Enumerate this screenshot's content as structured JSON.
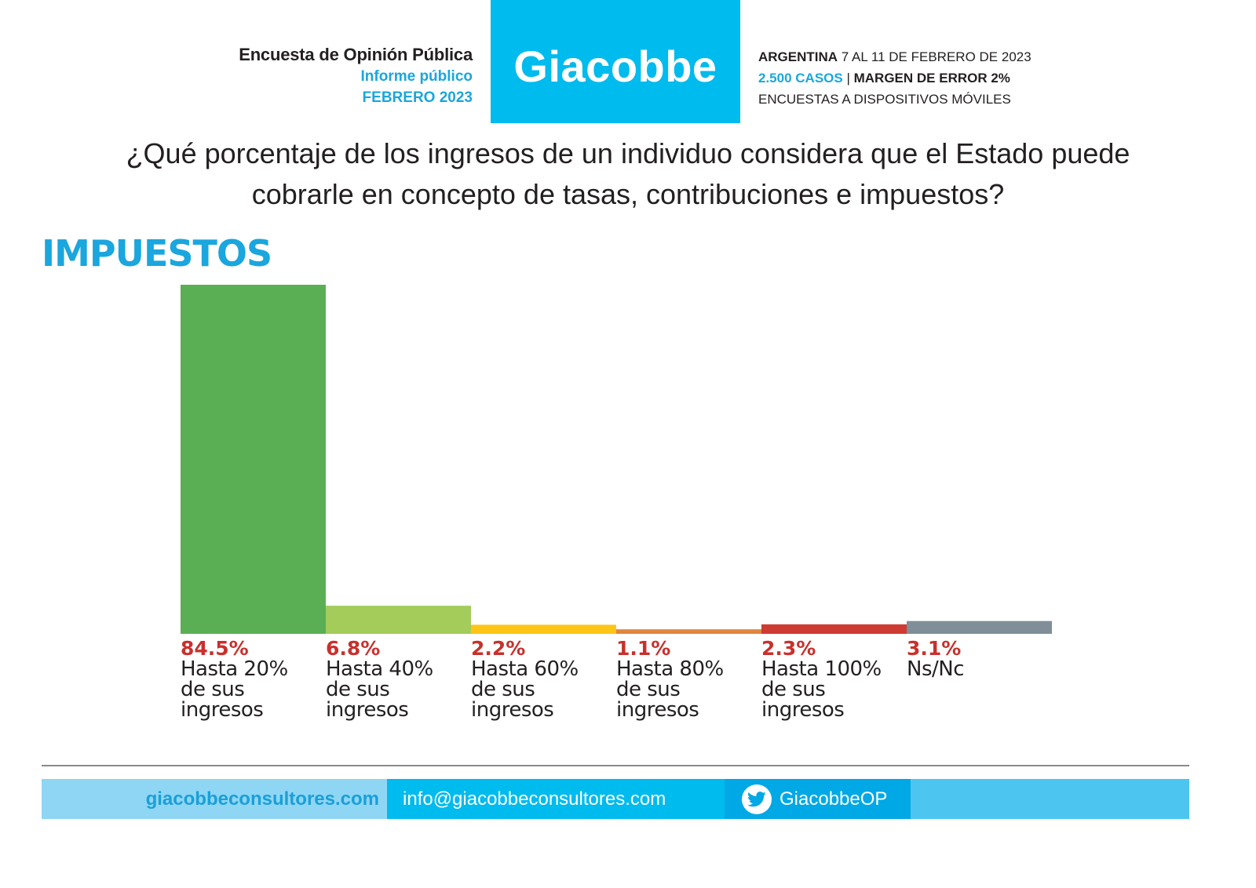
{
  "header": {
    "left": {
      "line1": "Encuesta de Opinión Pública",
      "line2": "Informe público",
      "line3": "FEBRERO 2023"
    },
    "logo": "Giacobbe",
    "right": {
      "country": "ARGENTINA",
      "dates": " 7 AL 11 DE FEBRERO DE 2023",
      "cases": "2.500 CASOS",
      "separator": " | ",
      "margin": "MARGEN DE ERROR 2%",
      "method": "ENCUESTAS A DISPOSITIVOS MÓVILES"
    }
  },
  "question": {
    "line1": "¿Qué porcentaje de los ingresos de un individuo considera que el Estado puede",
    "line2": "cobrarle en concepto de tasas, contribuciones e impuestos?"
  },
  "section_title": "IMPUESTOS",
  "chart_data": {
    "type": "bar",
    "title": "IMPUESTOS",
    "xlabel": "",
    "ylabel": "",
    "ylim": [
      0,
      84.5
    ],
    "grid": false,
    "legend": "none",
    "categories": [
      [
        "Hasta 20%",
        "de sus",
        "ingresos"
      ],
      [
        "Hasta 40%",
        "de sus",
        "ingresos"
      ],
      [
        "Hasta 60%",
        "de sus",
        "ingresos"
      ],
      [
        "Hasta 80%",
        "de sus",
        "ingresos"
      ],
      [
        "Hasta 100%",
        "de sus",
        "ingresos"
      ],
      [
        "Ns/Nc"
      ]
    ],
    "values": [
      84.5,
      6.8,
      2.2,
      1.1,
      2.3,
      3.1
    ],
    "value_labels": [
      "84.5%",
      "6.8%",
      "2.2%",
      "1.1%",
      "2.3%",
      "3.1%"
    ],
    "colors": [
      "#5aaf55",
      "#a3cc5a",
      "#fdc516",
      "#e0853e",
      "#ce3b32",
      "#7f8e98"
    ],
    "value_label_color": "#c9302c"
  },
  "footer": {
    "website": "giacobbeconsultores.com",
    "email": "info@giacobbeconsultores.com",
    "twitter_icon": "twitter-bird-icon",
    "twitter": "GiacobbeOP"
  },
  "colors": {
    "brand_blue": "#00bbee",
    "accent_blue": "#1aa6de",
    "text_dark": "#231f20"
  }
}
